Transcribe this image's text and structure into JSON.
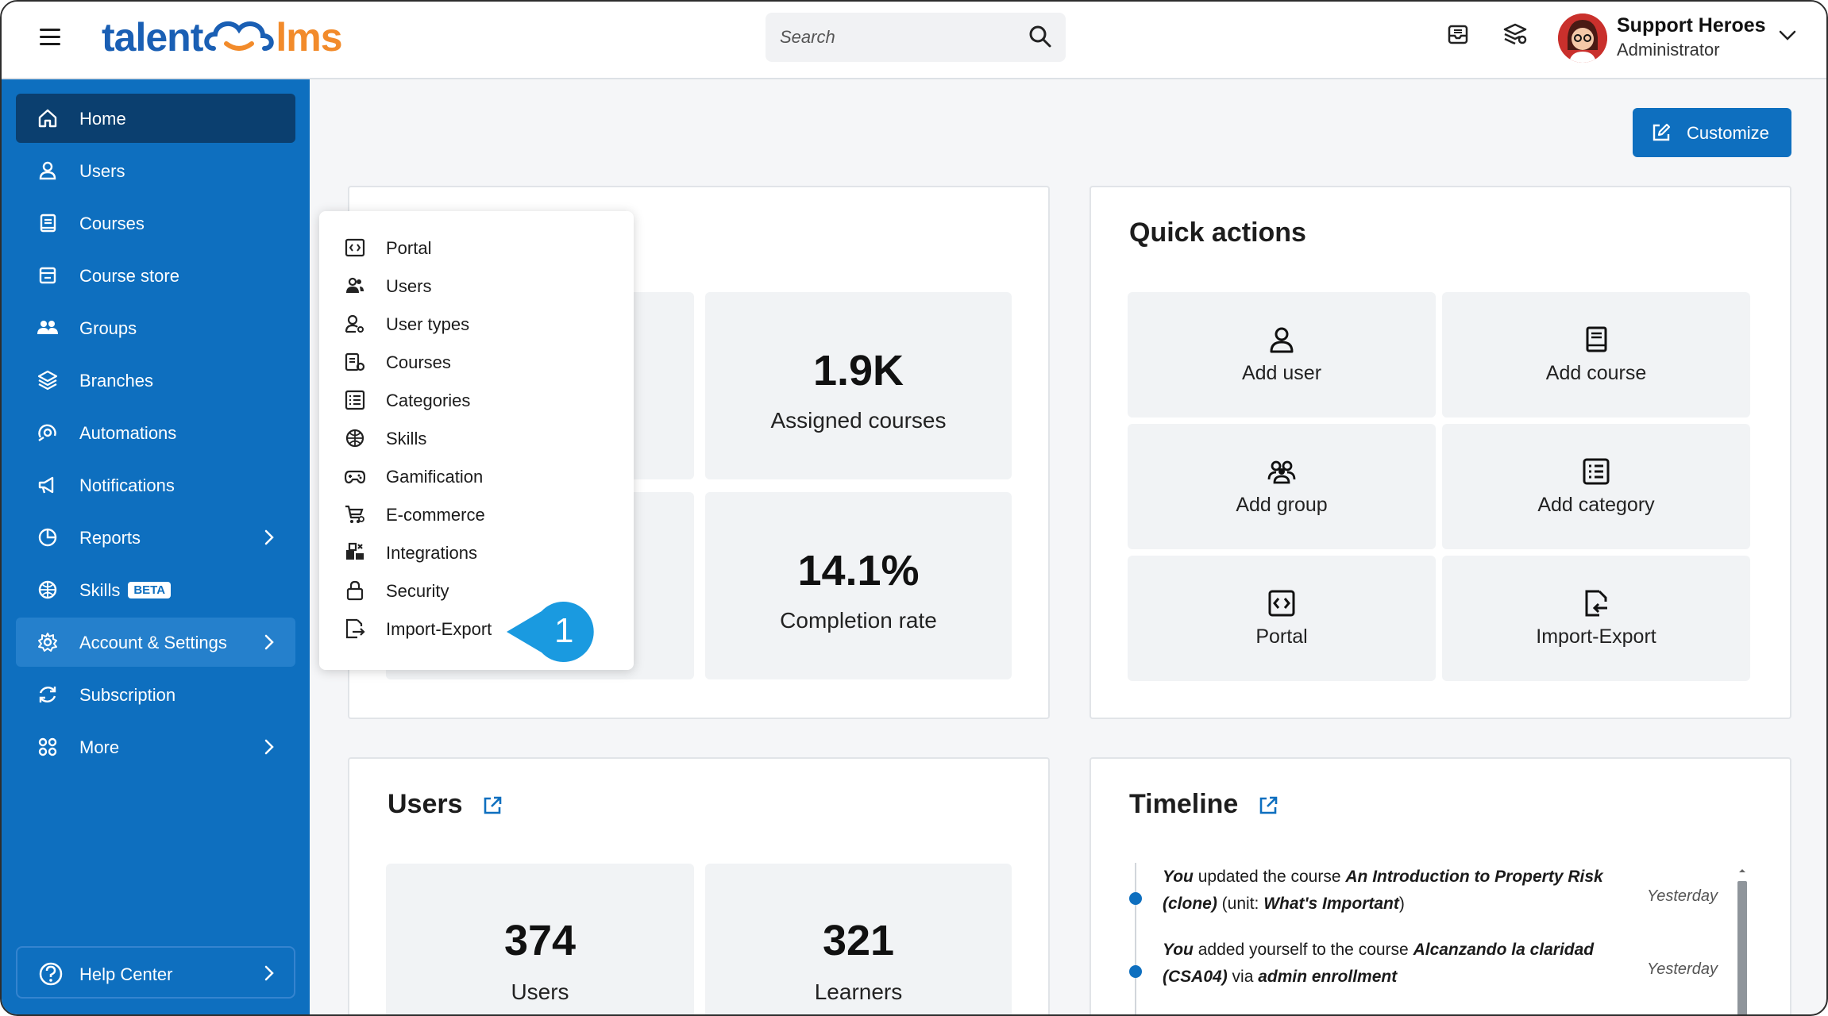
{
  "logo": {
    "part1": "talent",
    "part2": "lms"
  },
  "search": {
    "placeholder": "Search"
  },
  "profile": {
    "name": "Support Heroes",
    "role": "Administrator"
  },
  "sidebar": {
    "items": [
      {
        "label": "Home",
        "icon": "home-icon"
      },
      {
        "label": "Users",
        "icon": "user-icon"
      },
      {
        "label": "Courses",
        "icon": "book-icon"
      },
      {
        "label": "Course store",
        "icon": "store-icon"
      },
      {
        "label": "Groups",
        "icon": "group-icon"
      },
      {
        "label": "Branches",
        "icon": "layers-icon"
      },
      {
        "label": "Automations",
        "icon": "automation-icon"
      },
      {
        "label": "Notifications",
        "icon": "megaphone-icon"
      },
      {
        "label": "Reports",
        "icon": "pie-chart-icon"
      },
      {
        "label": "Skills",
        "icon": "skills-icon",
        "badge": "BETA"
      },
      {
        "label": "Account & Settings",
        "icon": "gear-icon"
      },
      {
        "label": "Subscription",
        "icon": "subscription-icon"
      },
      {
        "label": "More",
        "icon": "grid-icon"
      }
    ],
    "help": "Help Center"
  },
  "customize_label": "Customize",
  "overview": {
    "stats": [
      {
        "value": "1.9K",
        "label": "Assigned courses"
      },
      {
        "value": "14.1%",
        "label": "Completion rate"
      }
    ]
  },
  "quick_actions": {
    "title": "Quick actions",
    "items": [
      "Add user",
      "Add course",
      "Add group",
      "Add category",
      "Portal",
      "Import-Export"
    ]
  },
  "users_card": {
    "title": "Users",
    "stats": [
      {
        "value": "374",
        "label": "Users"
      },
      {
        "value": "321",
        "label": "Learners"
      }
    ]
  },
  "timeline": {
    "title": "Timeline",
    "entries": [
      {
        "t1": "You",
        "t2": " updated the course ",
        "t3": "An Introduction to Property Risk (clone)",
        "t4": " (unit: ",
        "t5": "What's Important",
        "t6": ")",
        "when": "Yesterday"
      },
      {
        "t1": "You",
        "t2": " added yourself to the course ",
        "t3": "Alcanzando la claridad (CSA04)",
        "t4": " via ",
        "t5": "admin enrollment",
        "t6": "",
        "when": "Yesterday"
      }
    ]
  },
  "settings_menu": {
    "items": [
      "Portal",
      "Users",
      "User types",
      "Courses",
      "Categories",
      "Skills",
      "Gamification",
      "E-commerce",
      "Integrations",
      "Security",
      "Import-Export"
    ]
  },
  "callout": {
    "number": "1"
  },
  "colors": {
    "brand_blue": "#0e6fbf",
    "active_nav": "#0b3f6f",
    "logo_orange": "#f28b2b"
  }
}
